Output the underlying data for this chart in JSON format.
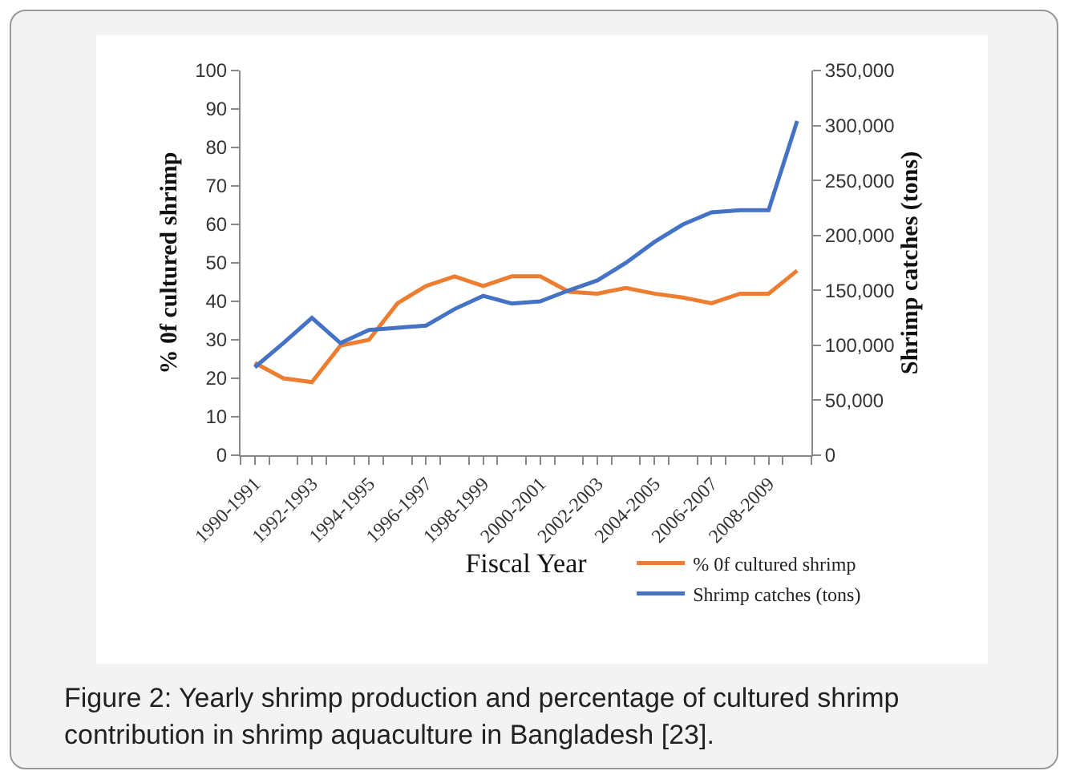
{
  "chart_data": {
    "type": "line",
    "xlabel": "Fiscal Year",
    "ylabel": "% 0f cultured shrimp",
    "y2label": "Shrimp catches (tons)",
    "categories": [
      "1990-1991",
      null,
      "1992-1993",
      null,
      "1994-1995",
      null,
      "1996-1997",
      null,
      "1998-1999",
      null,
      "2000-2001",
      null,
      "2002-2003",
      null,
      "2004-2005",
      null,
      "2006-2007",
      null,
      "2008-2009",
      null
    ],
    "series": [
      {
        "name": "% 0f cultured shrimp",
        "color": "#ed7d31",
        "values": [
          24,
          20,
          19,
          28.5,
          30,
          39.5,
          44,
          46.5,
          44,
          46.5,
          46.5,
          42.5,
          42,
          43.5,
          42,
          41,
          39.5,
          42,
          42,
          48
        ]
      },
      {
        "name": "Shrimp catches (tons)",
        "color": "#4472c4",
        "axis": "y2",
        "values": [
          80000,
          102000,
          125000,
          102000,
          114000,
          116000,
          118000,
          133000,
          145000,
          138000,
          140000,
          150000,
          159000,
          175000,
          194000,
          210000,
          221000,
          223000,
          223000,
          304000
        ]
      }
    ],
    "ylim": [
      0,
      100
    ],
    "yticks": [
      0,
      10,
      20,
      30,
      40,
      50,
      60,
      70,
      80,
      90,
      100
    ],
    "y2lim": [
      0,
      350000
    ],
    "y2ticks": [
      {
        "value": 0,
        "label": "0"
      },
      {
        "value": 50000,
        "label": "50,000"
      },
      {
        "value": 100000,
        "label": "100,000"
      },
      {
        "value": 150000,
        "label": "150,000"
      },
      {
        "value": 200000,
        "label": "200,000"
      },
      {
        "value": 250000,
        "label": "250,000"
      },
      {
        "value": 300000,
        "label": "300,000"
      },
      {
        "value": 350000,
        "label": "350,000"
      }
    ],
    "grid": false,
    "legend": "bottom right",
    "marker": "none",
    "line_style": "solid",
    "annotations": [
      "Figure 2: Yearly shrimp production and percentage of cultured shrimp contribution in shrimp aquaculture in Bangladesh [23]."
    ]
  }
}
